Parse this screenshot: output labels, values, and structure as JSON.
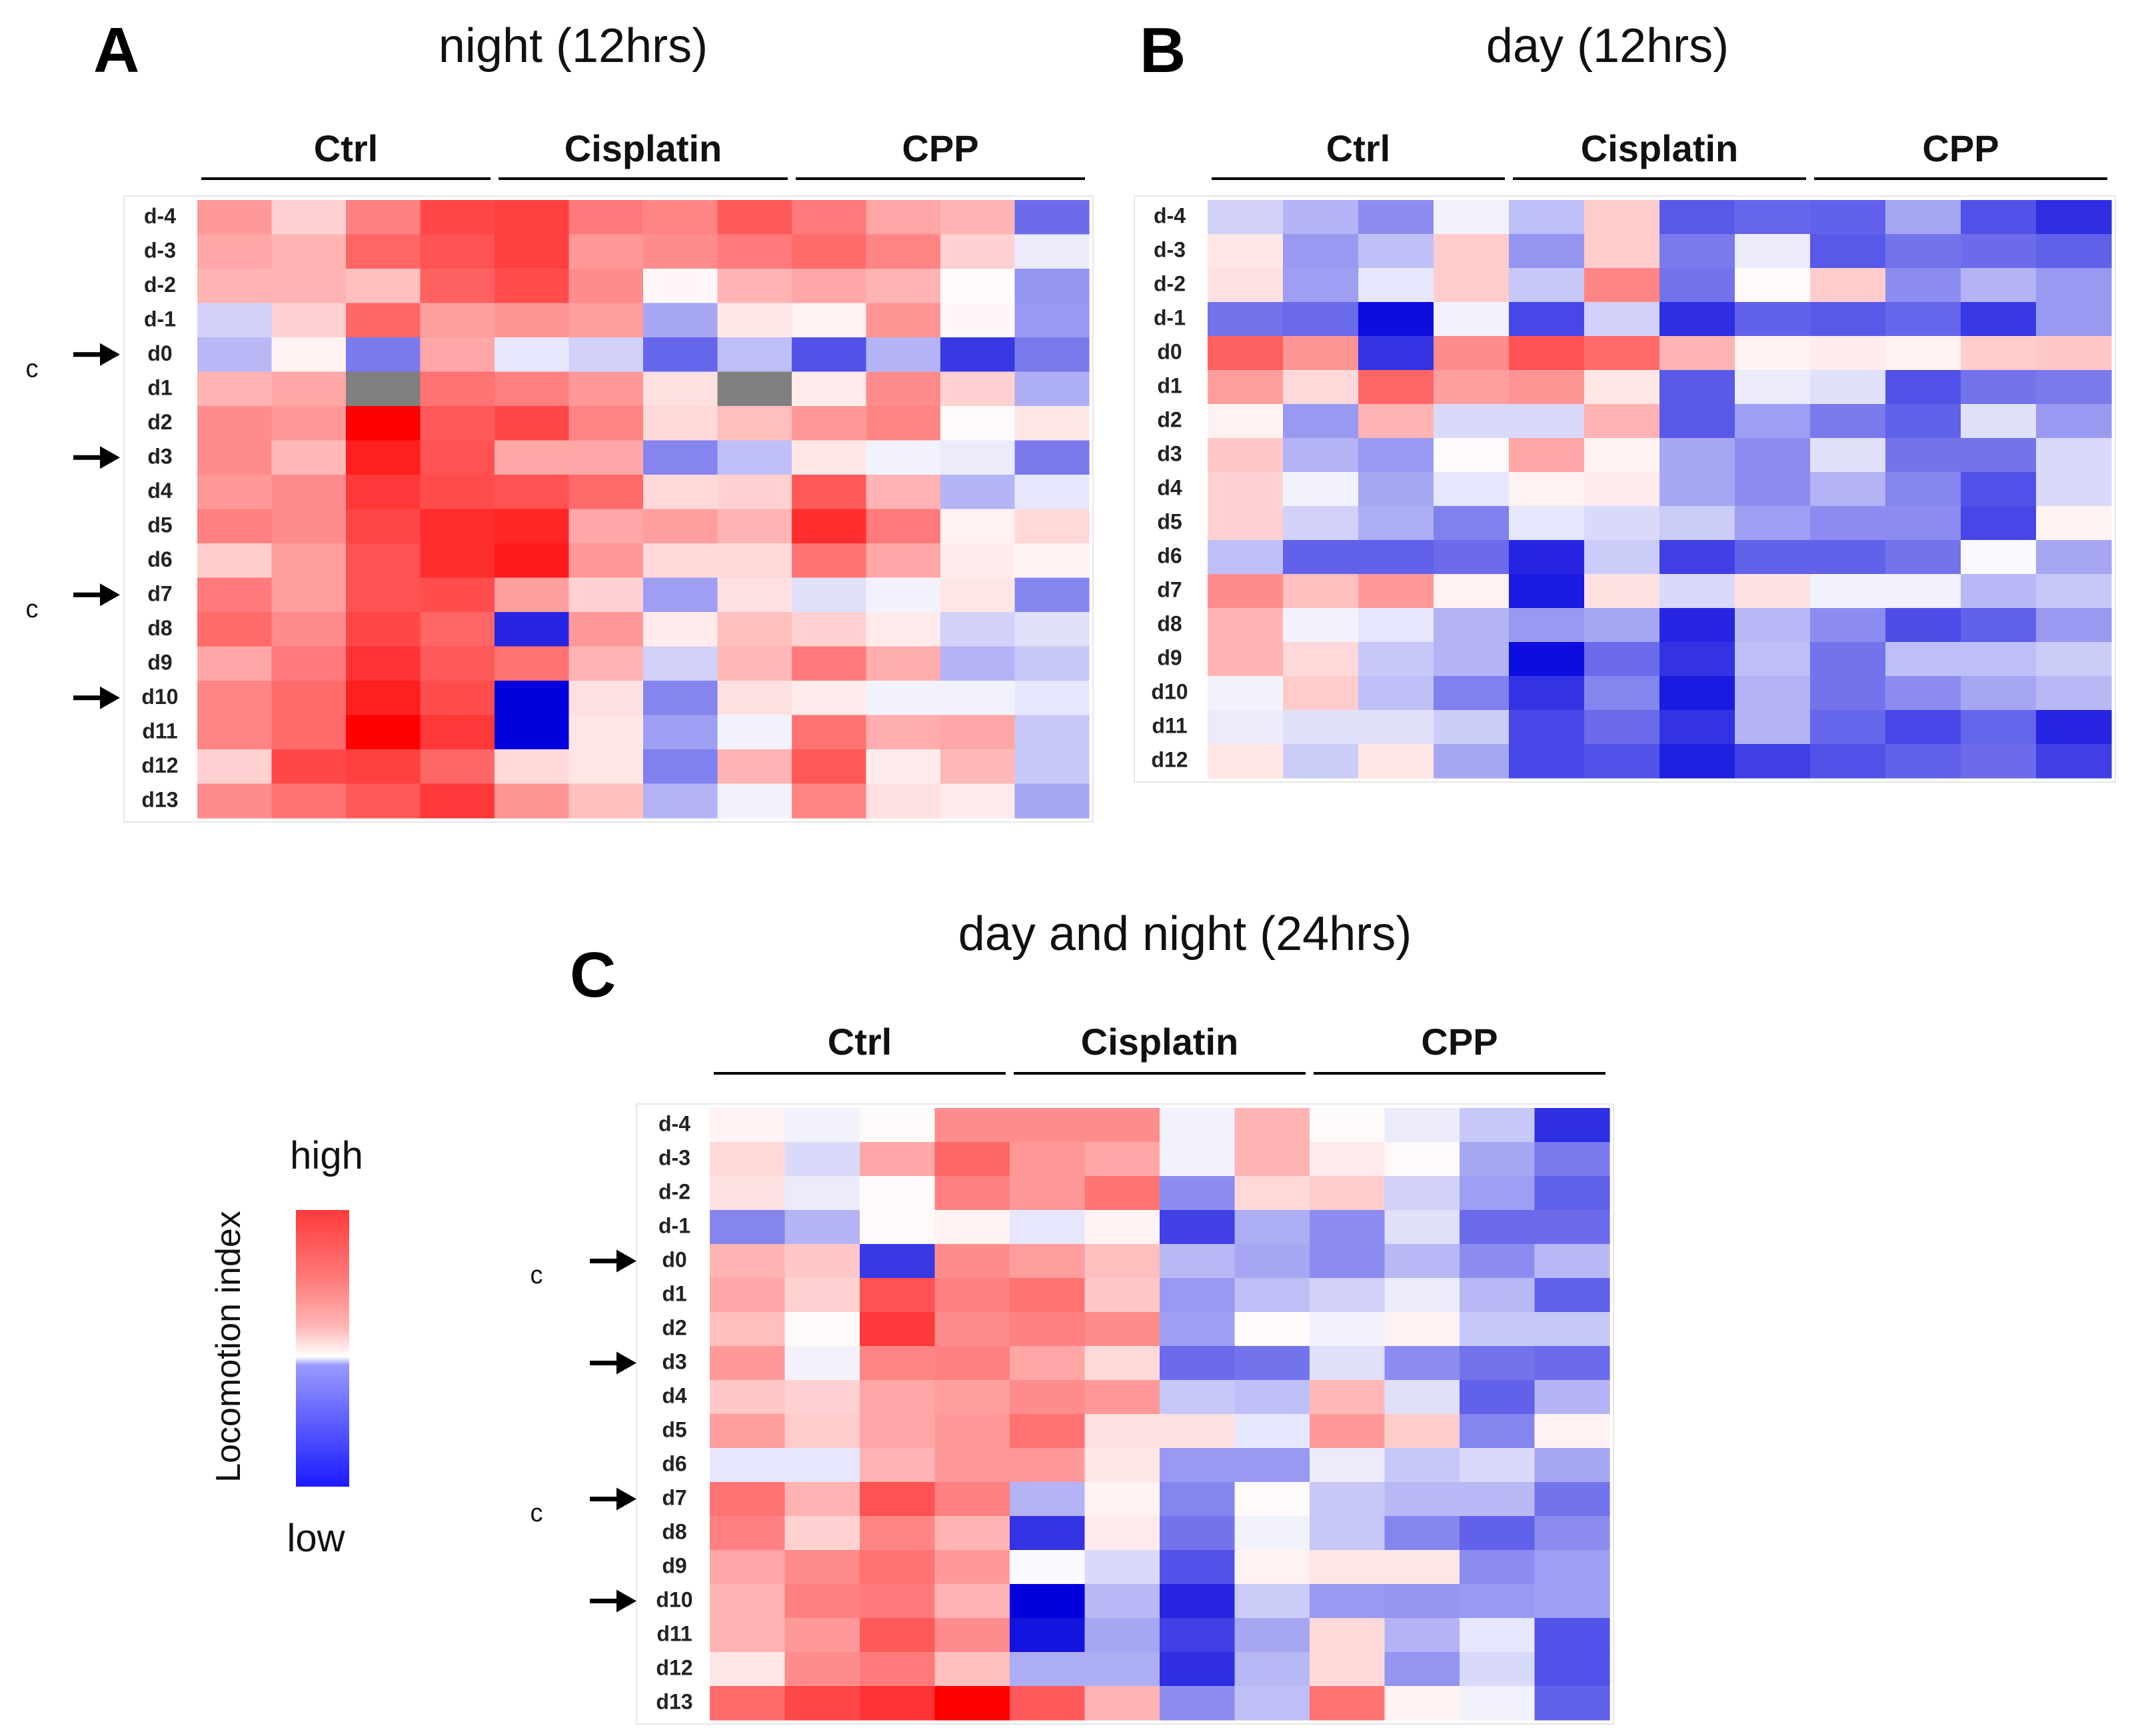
{
  "colors": {
    "high": "#ff0000",
    "mid": "#ffffff",
    "low": "#0000dd",
    "missing": "#808080"
  },
  "chart_data": [
    {
      "type": "heatmap",
      "panel": "A",
      "title": "night (12hrs)",
      "groups": [
        "Ctrl",
        "Cisplatin",
        "CPP"
      ],
      "columns_per_group": 4,
      "rows": [
        "d-4",
        "d-3",
        "d-2",
        "d-1",
        "d0",
        "d1",
        "d2",
        "d3",
        "d4",
        "d5",
        "d6",
        "d7",
        "d8",
        "d9",
        "d10",
        "d11",
        "d12",
        "d13"
      ],
      "arrow_rows": [
        "d0",
        "d3",
        "d7",
        "d10"
      ],
      "c_marks": [
        "c",
        "c"
      ],
      "value_range": [
        -1,
        1
      ],
      "values": [
        [
          0.4,
          0.18,
          0.5,
          0.72,
          0.75,
          0.52,
          0.48,
          0.65,
          0.52,
          0.35,
          0.3,
          -0.58
        ],
        [
          0.35,
          0.3,
          0.6,
          0.68,
          0.75,
          0.4,
          0.45,
          0.52,
          0.58,
          0.48,
          0.18,
          -0.08
        ],
        [
          0.3,
          0.3,
          0.25,
          0.62,
          0.7,
          0.45,
          0.03,
          0.3,
          0.35,
          0.3,
          0.02,
          -0.42
        ],
        [
          -0.18,
          0.18,
          0.6,
          0.38,
          0.42,
          0.38,
          -0.35,
          0.1,
          0.05,
          0.42,
          0.03,
          -0.4
        ],
        [
          -0.28,
          0.05,
          -0.52,
          0.35,
          -0.1,
          -0.18,
          -0.6,
          -0.25,
          -0.68,
          -0.3,
          -0.78,
          -0.52
        ],
        [
          0.3,
          0.35,
          null,
          0.55,
          0.5,
          0.4,
          0.12,
          null,
          0.08,
          0.45,
          0.18,
          -0.32
        ],
        [
          0.45,
          0.4,
          1.0,
          0.65,
          0.72,
          0.48,
          0.15,
          0.25,
          0.4,
          0.48,
          0.02,
          0.1
        ],
        [
          0.45,
          0.28,
          0.88,
          0.68,
          0.35,
          0.35,
          -0.48,
          -0.25,
          0.1,
          -0.05,
          -0.08,
          -0.52
        ],
        [
          0.4,
          0.45,
          0.78,
          0.7,
          0.68,
          0.58,
          0.15,
          0.18,
          0.65,
          0.3,
          -0.3,
          -0.1
        ],
        [
          0.5,
          0.45,
          0.72,
          0.82,
          0.85,
          0.35,
          0.38,
          0.3,
          0.82,
          0.52,
          0.05,
          0.15
        ],
        [
          0.2,
          0.38,
          0.68,
          0.82,
          0.9,
          0.4,
          0.15,
          0.15,
          0.55,
          0.35,
          0.08,
          0.05
        ],
        [
          0.52,
          0.38,
          0.68,
          0.7,
          0.38,
          0.18,
          -0.38,
          0.12,
          -0.12,
          -0.05,
          0.1,
          -0.48
        ],
        [
          0.58,
          0.45,
          0.72,
          0.6,
          -0.85,
          0.4,
          0.08,
          0.25,
          0.18,
          0.08,
          -0.18,
          -0.12
        ],
        [
          0.35,
          0.52,
          0.8,
          0.65,
          0.55,
          0.3,
          -0.18,
          0.28,
          0.52,
          0.32,
          -0.3,
          -0.22
        ],
        [
          0.48,
          0.58,
          0.88,
          0.7,
          -1.0,
          0.12,
          -0.48,
          0.12,
          0.08,
          -0.05,
          -0.05,
          -0.1
        ],
        [
          0.48,
          0.58,
          1.0,
          0.78,
          -1.0,
          0.1,
          -0.38,
          -0.05,
          0.55,
          0.32,
          0.35,
          -0.22
        ],
        [
          0.18,
          0.72,
          0.75,
          0.6,
          0.15,
          0.1,
          -0.5,
          0.3,
          0.65,
          0.08,
          0.28,
          -0.22
        ],
        [
          0.45,
          0.55,
          0.65,
          0.78,
          0.42,
          0.25,
          -0.3,
          -0.05,
          0.48,
          0.12,
          0.08,
          -0.35
        ]
      ]
    },
    {
      "type": "heatmap",
      "panel": "B",
      "title": "day (12hrs)",
      "groups": [
        "Ctrl",
        "Cisplatin",
        "CPP"
      ],
      "columns_per_group": 4,
      "rows": [
        "d-4",
        "d-3",
        "d-2",
        "d-1",
        "d0",
        "d1",
        "d2",
        "d3",
        "d4",
        "d5",
        "d6",
        "d7",
        "d8",
        "d9",
        "d10",
        "d11",
        "d12"
      ],
      "value_range": [
        -1,
        1
      ],
      "values": [
        [
          -0.18,
          -0.3,
          -0.45,
          -0.05,
          -0.25,
          0.2,
          -0.65,
          -0.6,
          -0.62,
          -0.35,
          -0.68,
          -0.82
        ],
        [
          0.1,
          -0.4,
          -0.25,
          0.2,
          -0.42,
          0.2,
          -0.52,
          -0.08,
          -0.65,
          -0.55,
          -0.58,
          -0.62
        ],
        [
          0.12,
          -0.38,
          -0.1,
          0.2,
          -0.22,
          0.48,
          -0.55,
          0.02,
          0.2,
          -0.45,
          -0.3,
          -0.4
        ],
        [
          -0.55,
          -0.58,
          -0.95,
          -0.05,
          -0.72,
          -0.18,
          -0.82,
          -0.62,
          -0.65,
          -0.6,
          -0.78,
          -0.4
        ],
        [
          0.62,
          0.42,
          -0.8,
          0.45,
          0.68,
          0.58,
          0.3,
          0.05,
          0.08,
          0.05,
          0.2,
          0.22
        ],
        [
          0.38,
          0.15,
          0.6,
          0.38,
          0.42,
          0.1,
          -0.65,
          -0.08,
          -0.12,
          -0.68,
          -0.55,
          -0.52
        ],
        [
          0.05,
          -0.4,
          0.3,
          -0.15,
          -0.15,
          0.3,
          -0.65,
          -0.38,
          -0.52,
          -0.62,
          -0.12,
          -0.4
        ],
        [
          0.22,
          -0.3,
          -0.4,
          0.02,
          0.35,
          0.05,
          -0.35,
          -0.45,
          -0.12,
          -0.55,
          -0.55,
          -0.15
        ],
        [
          0.18,
          -0.05,
          -0.35,
          -0.1,
          0.05,
          0.08,
          -0.35,
          -0.45,
          -0.3,
          -0.48,
          -0.68,
          -0.15
        ],
        [
          0.18,
          -0.18,
          -0.32,
          -0.5,
          -0.1,
          -0.15,
          -0.2,
          -0.38,
          -0.45,
          -0.45,
          -0.72,
          0.05
        ],
        [
          -0.25,
          -0.62,
          -0.62,
          -0.58,
          -0.85,
          -0.2,
          -0.75,
          -0.62,
          -0.62,
          -0.55,
          -0.02,
          -0.35
        ],
        [
          0.45,
          0.25,
          0.4,
          0.05,
          -0.9,
          0.12,
          -0.15,
          0.12,
          -0.05,
          -0.05,
          -0.28,
          -0.22
        ],
        [
          0.3,
          -0.05,
          -0.1,
          -0.3,
          -0.4,
          -0.35,
          -0.85,
          -0.28,
          -0.45,
          -0.7,
          -0.62,
          -0.4
        ],
        [
          0.3,
          0.15,
          -0.22,
          -0.3,
          -0.95,
          -0.58,
          -0.8,
          -0.25,
          -0.55,
          -0.25,
          -0.25,
          -0.2
        ],
        [
          -0.05,
          0.2,
          -0.25,
          -0.5,
          -0.8,
          -0.48,
          -0.9,
          -0.3,
          -0.55,
          -0.45,
          -0.35,
          -0.28
        ],
        [
          -0.08,
          -0.12,
          -0.12,
          -0.2,
          -0.72,
          -0.58,
          -0.8,
          -0.3,
          -0.6,
          -0.72,
          -0.6,
          -0.85
        ],
        [
          0.1,
          -0.2,
          0.1,
          -0.35,
          -0.72,
          -0.68,
          -0.88,
          -0.75,
          -0.68,
          -0.62,
          -0.58,
          -0.75
        ]
      ]
    },
    {
      "type": "heatmap",
      "panel": "C",
      "title": "day and night (24hrs)",
      "groups": [
        "Ctrl",
        "Cisplatin",
        "CPP"
      ],
      "columns_per_group": 4,
      "rows": [
        "d-4",
        "d-3",
        "d-2",
        "d-1",
        "d0",
        "d1",
        "d2",
        "d3",
        "d4",
        "d5",
        "d6",
        "d7",
        "d8",
        "d9",
        "d10",
        "d11",
        "d12",
        "d13"
      ],
      "arrow_rows": [
        "d0",
        "d3",
        "d7",
        "d10"
      ],
      "c_marks": [
        "c",
        "c"
      ],
      "value_range": [
        -1,
        1
      ],
      "values": [
        [
          0.05,
          -0.05,
          0.02,
          0.45,
          0.45,
          0.45,
          -0.05,
          0.3,
          0.02,
          -0.08,
          -0.22,
          -0.82
        ],
        [
          0.15,
          -0.15,
          0.35,
          0.6,
          0.4,
          0.35,
          -0.05,
          0.3,
          0.08,
          0.02,
          -0.35,
          -0.52
        ],
        [
          0.12,
          -0.08,
          0.02,
          0.5,
          0.4,
          0.55,
          -0.45,
          0.15,
          0.2,
          -0.18,
          -0.38,
          -0.62
        ],
        [
          -0.48,
          -0.3,
          0.02,
          0.05,
          -0.1,
          0.05,
          -0.75,
          -0.32,
          -0.45,
          -0.12,
          -0.58,
          -0.58
        ],
        [
          0.3,
          0.22,
          -0.78,
          0.45,
          0.38,
          0.25,
          -0.28,
          -0.35,
          -0.45,
          -0.28,
          -0.45,
          -0.28
        ],
        [
          0.35,
          0.18,
          0.68,
          0.5,
          0.55,
          0.22,
          -0.4,
          -0.25,
          -0.18,
          -0.08,
          -0.28,
          -0.62
        ],
        [
          0.25,
          0.02,
          0.78,
          0.45,
          0.5,
          0.45,
          -0.38,
          0.02,
          -0.05,
          0.05,
          -0.22,
          -0.22
        ],
        [
          0.4,
          -0.05,
          0.48,
          0.5,
          0.35,
          0.15,
          -0.58,
          -0.55,
          -0.12,
          -0.45,
          -0.55,
          -0.58
        ],
        [
          0.22,
          0.18,
          0.35,
          0.38,
          0.45,
          0.4,
          -0.22,
          -0.25,
          0.28,
          -0.12,
          -0.62,
          -0.3
        ],
        [
          0.38,
          0.2,
          0.35,
          0.4,
          0.55,
          0.12,
          0.12,
          -0.1,
          0.4,
          0.2,
          -0.48,
          0.05
        ],
        [
          -0.1,
          -0.1,
          0.3,
          0.4,
          0.4,
          0.1,
          -0.4,
          -0.4,
          -0.08,
          -0.22,
          -0.15,
          -0.35
        ],
        [
          0.55,
          0.3,
          0.68,
          0.5,
          -0.3,
          0.05,
          -0.48,
          0.02,
          -0.22,
          -0.28,
          -0.28,
          -0.55
        ],
        [
          0.5,
          0.18,
          0.48,
          0.3,
          -0.8,
          0.08,
          -0.55,
          -0.05,
          -0.22,
          -0.48,
          -0.62,
          -0.45
        ],
        [
          0.35,
          0.45,
          0.55,
          0.4,
          -0.02,
          -0.15,
          -0.68,
          0.05,
          0.1,
          0.1,
          -0.45,
          -0.38
        ],
        [
          0.3,
          0.5,
          0.52,
          0.3,
          -1.0,
          -0.28,
          -0.85,
          -0.2,
          -0.4,
          -0.42,
          -0.4,
          -0.38
        ],
        [
          0.3,
          0.4,
          0.65,
          0.45,
          -0.92,
          -0.35,
          -0.75,
          -0.35,
          0.15,
          -0.3,
          -0.1,
          -0.68
        ],
        [
          0.1,
          0.45,
          0.52,
          0.25,
          -0.32,
          -0.32,
          -0.82,
          -0.28,
          0.15,
          -0.42,
          -0.15,
          -0.68
        ],
        [
          0.58,
          0.72,
          0.8,
          1.0,
          0.65,
          0.3,
          -0.45,
          -0.25,
          0.55,
          0.05,
          -0.05,
          -0.62
        ]
      ]
    }
  ],
  "legend": {
    "title": "Locomotion index",
    "high_label": "high",
    "low_label": "low"
  }
}
